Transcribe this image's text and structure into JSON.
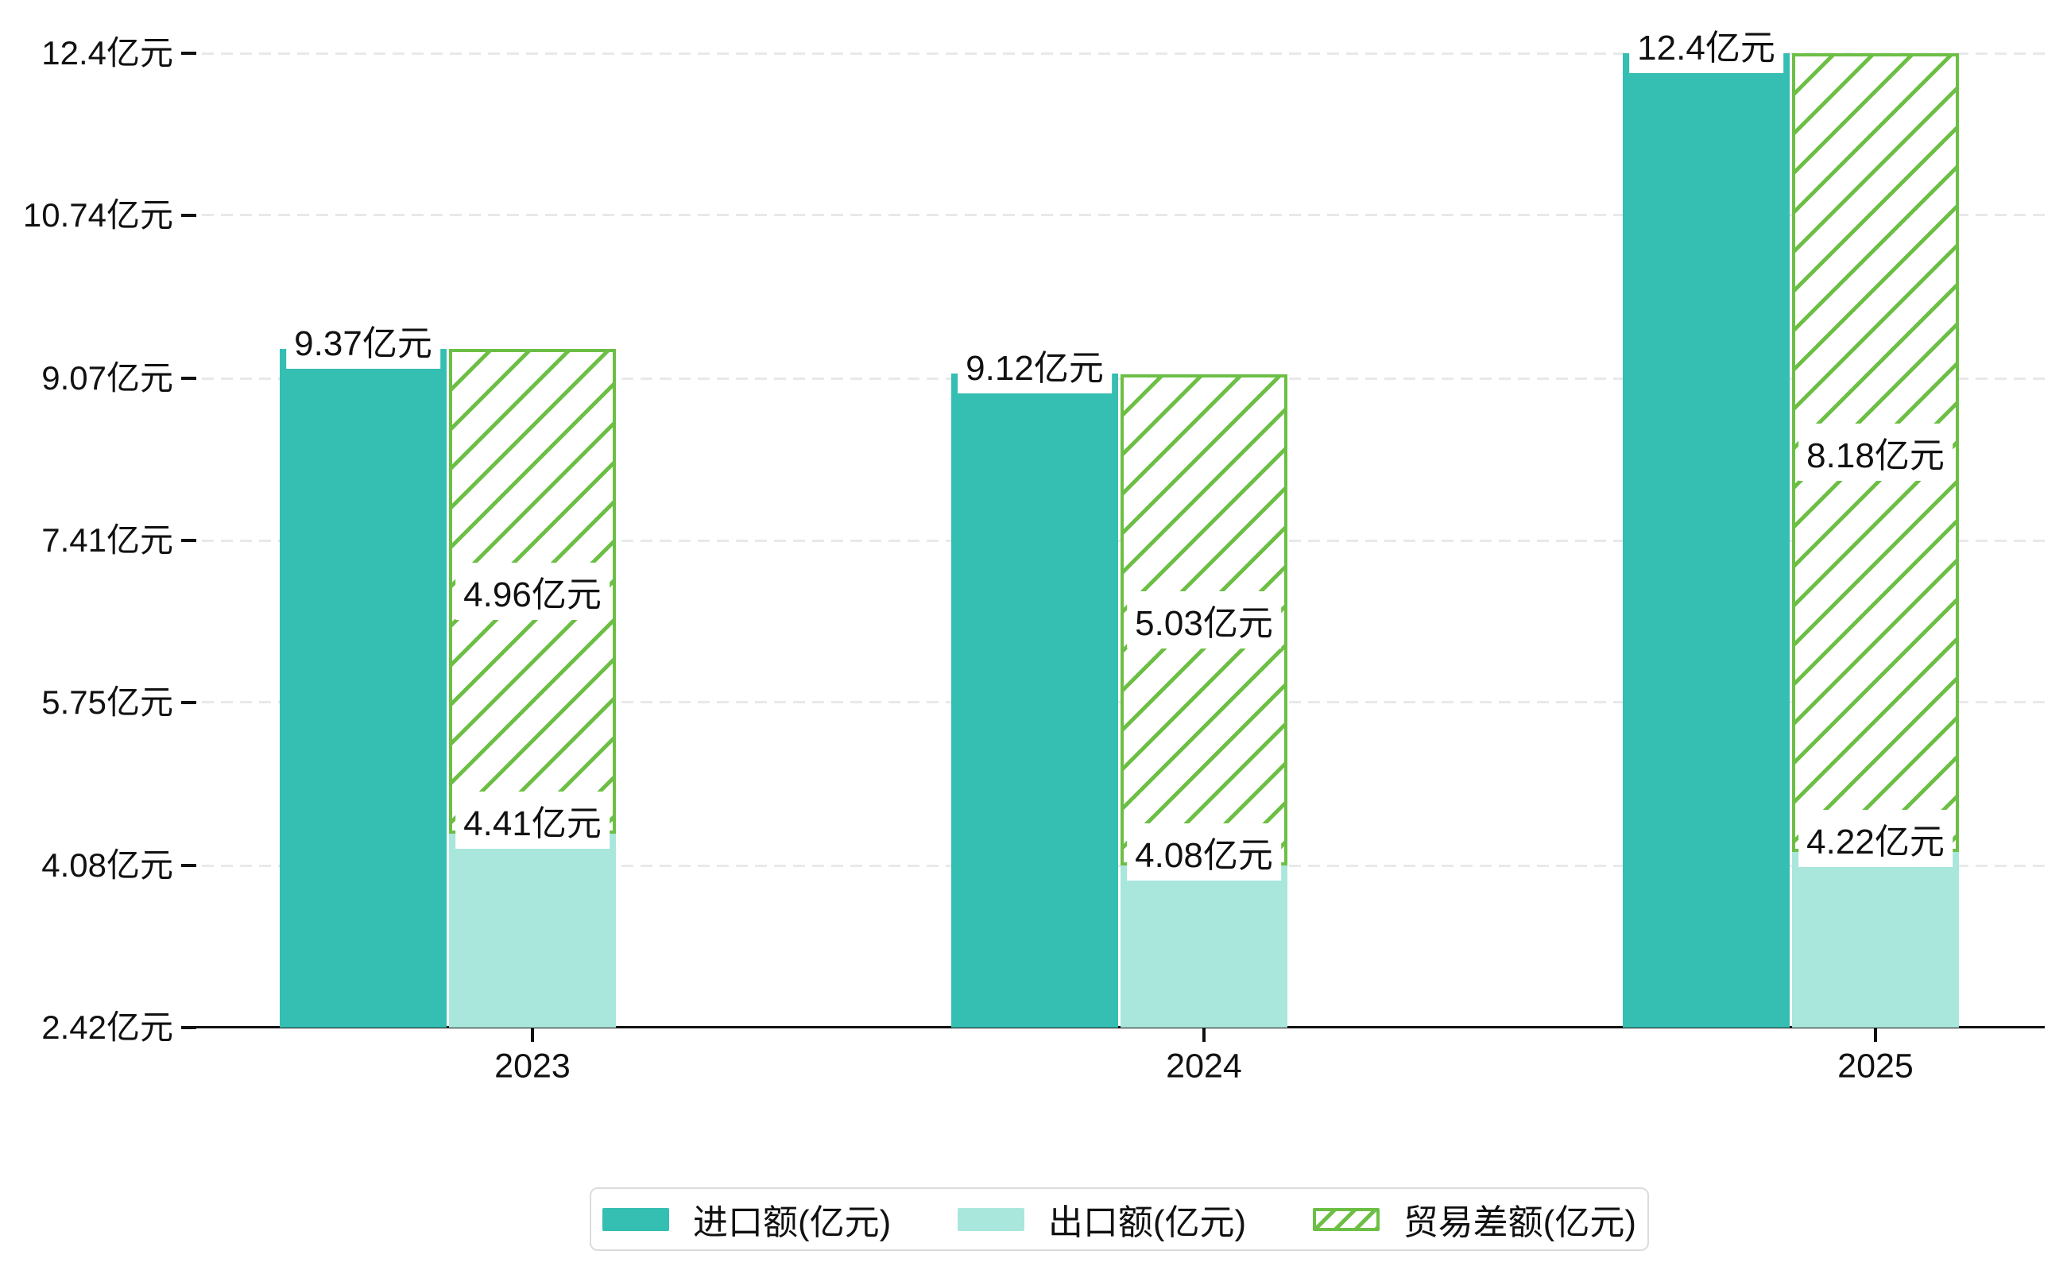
{
  "chart_data": {
    "type": "bar",
    "title": "",
    "unit": "亿元",
    "categories": [
      "2023",
      "2024",
      "2025"
    ],
    "series": [
      {
        "name": "进口额(亿元)",
        "role": "import",
        "style": "solid",
        "color": "#35beb2",
        "values": [
          9.37,
          9.12,
          12.4
        ],
        "labels": [
          "9.37亿元",
          "9.12亿元",
          "12.4亿元"
        ]
      },
      {
        "name": "出口额(亿元)",
        "role": "export",
        "style": "solid",
        "color": "#a9e6dc",
        "values": [
          4.41,
          4.08,
          4.22
        ],
        "labels": [
          "4.41亿元",
          "4.08亿元",
          "4.22亿元"
        ]
      },
      {
        "name": "贸易差额(亿元)",
        "role": "trade-diff",
        "style": "hatched",
        "color": "#6cbf44",
        "stacked_on": "出口额(亿元)",
        "values": [
          4.96,
          5.03,
          8.18
        ],
        "labels": [
          "4.96亿元",
          "5.03亿元",
          "8.18亿元"
        ]
      }
    ],
    "y_axis": {
      "ticks": [
        {
          "label": "12.4亿元",
          "value": 12.4
        },
        {
          "label": "10.74亿元",
          "value": 10.74
        },
        {
          "label": "9.07亿元",
          "value": 9.07
        },
        {
          "label": "7.41亿元",
          "value": 7.41
        },
        {
          "label": "5.75亿元",
          "value": 5.75
        },
        {
          "label": "4.08亿元",
          "value": 4.08
        },
        {
          "label": "2.42亿元",
          "value": 2.42
        }
      ]
    },
    "ylim": [
      2.42,
      12.4
    ],
    "grid": "horizontal-dashed",
    "legend_position": "bottom-center",
    "colors": {
      "grid": "#e9e9e9",
      "axis": "#111111",
      "label_background": "#ffffff"
    }
  }
}
